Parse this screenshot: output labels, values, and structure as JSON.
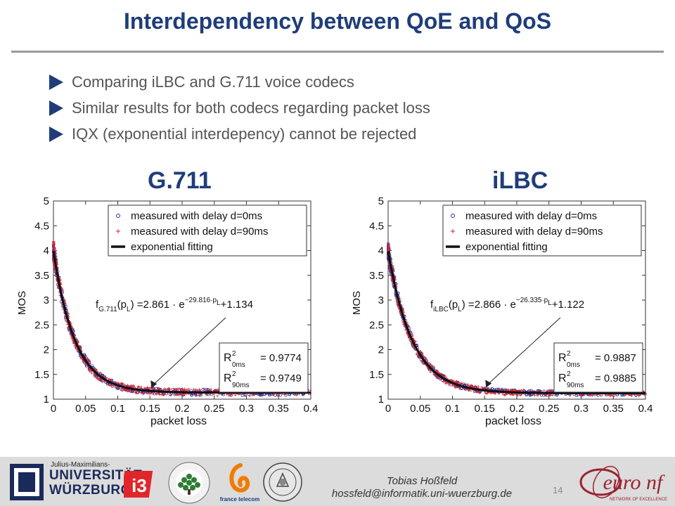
{
  "slide": {
    "title": "Interdependency  between QoE and QoS",
    "bullets": [
      "Comparing iLBC and G.711 voice codecs",
      "Similar results for both codecs regarding packet loss",
      "IQX (exponential interdepency) cannot be rejected"
    ],
    "page_number": "14",
    "author": "Tobias Hoßfeld",
    "email": "hossfeld@informatik.uni-wuerzburg.de"
  },
  "logos": {
    "university_top": "Julius-Maximilians-",
    "university_line1": "UNIVERSITÄT",
    "university_line2": "WÜRZBURG",
    "i3": "i3",
    "bth": "BLEKINGE TEKNISKA HÖGSKOLA · BTH ·",
    "france_telecom": "france telecom",
    "euronf": "euro nf",
    "euronf_sub": "NETWORK OF EXCELLENCE"
  },
  "colors": {
    "title": "#1f3d7a",
    "measured_0ms": "#2b2b9c",
    "measured_90ms": "#e0262b",
    "fit_line": "#111111"
  },
  "chart_data": [
    {
      "type": "scatter",
      "title": "G.711",
      "xlabel": "packet loss",
      "ylabel": "MOS",
      "xlim": [
        0,
        0.4
      ],
      "ylim": [
        1,
        5
      ],
      "xticks": [
        "0",
        "0.05",
        "0.1",
        "0.15",
        "0.2",
        "0.25",
        "0.3",
        "0.35",
        "0.4"
      ],
      "yticks": [
        "1",
        "1.5",
        "2",
        "2.5",
        "3",
        "3.5",
        "4",
        "4.5",
        "5"
      ],
      "legend_position": "top-right",
      "legend": [
        "measured with delay d=0ms",
        "measured with delay d=90ms",
        "exponential fitting"
      ],
      "fit": {
        "a": 2.861,
        "b": 29.816,
        "c": 1.134
      },
      "annotation": {
        "f": "f",
        "sub": "G.711",
        "args": "(p",
        "argsub": "L",
        "eq": ") =2.861 · e",
        "exp": "−29.816·p",
        "expsub": "L",
        "tail": "+1.134"
      },
      "r2": {
        "label": "R",
        "sup": "2",
        "sub0": "0ms",
        "sub90": "90ms",
        "val0": "= 0.9774",
        "val90": "= 0.9749"
      },
      "series": [
        {
          "name": "measured with delay d=0ms",
          "marker": "o",
          "spread": 0.12
        },
        {
          "name": "measured with delay d=90ms",
          "marker": "+",
          "spread": 0.14
        },
        {
          "name": "exponential fitting",
          "marker": "line"
        }
      ]
    },
    {
      "type": "scatter",
      "title": "iLBC",
      "xlabel": "packet loss",
      "ylabel": "MOS",
      "xlim": [
        0,
        0.4
      ],
      "ylim": [
        1,
        5
      ],
      "xticks": [
        "0",
        "0.05",
        "0.1",
        "0.15",
        "0.2",
        "0.25",
        "0.3",
        "0.35",
        "0.4"
      ],
      "yticks": [
        "1",
        "1.5",
        "2",
        "2.5",
        "3",
        "3.5",
        "4",
        "4.5",
        "5"
      ],
      "legend_position": "top-right",
      "legend": [
        "measured with delay d=0ms",
        "measured with delay d=90ms",
        "exponential fitting"
      ],
      "fit": {
        "a": 2.866,
        "b": 26.335,
        "c": 1.122
      },
      "annotation": {
        "f": "f",
        "sub": "iLBC",
        "args": "(p",
        "argsub": "L",
        "eq": ") =2.866 · e",
        "exp": "−26.335·p",
        "expsub": "L",
        "tail": "+1.122"
      },
      "r2": {
        "label": "R",
        "sup": "2",
        "sub0": "0ms",
        "sub90": "90ms",
        "val0": "= 0.9887",
        "val90": "= 0.9885"
      },
      "series": [
        {
          "name": "measured with delay d=0ms",
          "marker": "o",
          "spread": 0.1
        },
        {
          "name": "measured with delay d=90ms",
          "marker": "+",
          "spread": 0.12
        },
        {
          "name": "exponential fitting",
          "marker": "line"
        }
      ]
    }
  ]
}
